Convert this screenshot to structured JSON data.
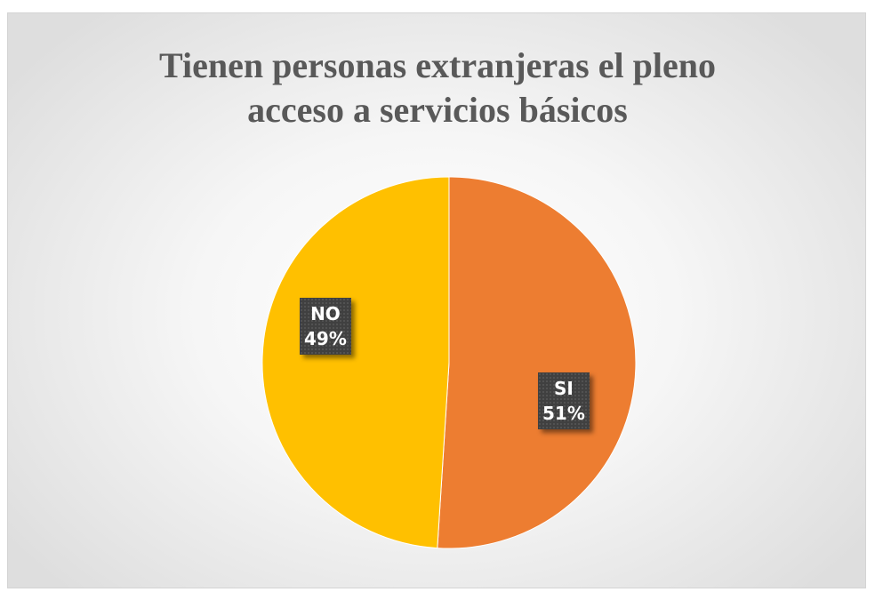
{
  "chart_data": {
    "type": "pie",
    "title_lines": [
      "Tienen personas extranjeras el pleno",
      "acceso a servicios básicos"
    ],
    "slices": [
      {
        "label": "SI",
        "value": 51,
        "value_text": "51%",
        "color": "#ED7D31"
      },
      {
        "label": "NO",
        "value": 49,
        "value_text": "49%",
        "color": "#FFC000"
      }
    ],
    "start_angle_deg": 0,
    "direction": "clockwise",
    "legend": "none"
  }
}
